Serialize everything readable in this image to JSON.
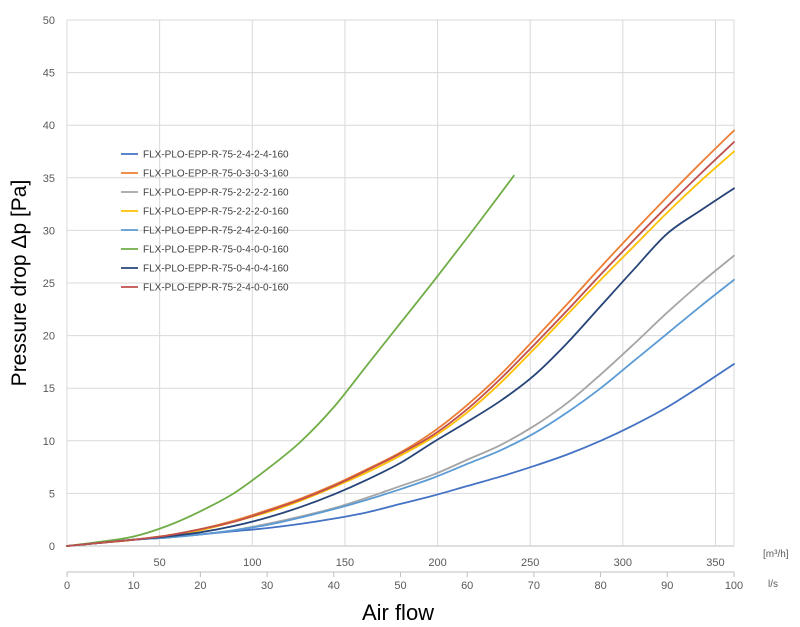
{
  "chart_data": {
    "type": "line",
    "title": "",
    "xlabel": "Air flow",
    "ylabel": "Pressure drop Δp [Pa]",
    "x_unit": "l/s",
    "x2_unit": "[m³/h]",
    "xlim": [
      0,
      100
    ],
    "ylim": [
      0,
      50
    ],
    "y_ticks": [
      "0",
      "5",
      "10",
      "15",
      "20",
      "25",
      "30",
      "35",
      "40",
      "45",
      "50"
    ],
    "x_ticks": [
      "0",
      "10",
      "20",
      "30",
      "40",
      "50",
      "60",
      "70",
      "80",
      "90",
      "100"
    ],
    "x2_ticks": [
      "50",
      "100",
      "150",
      "200",
      "250",
      "300",
      "350"
    ],
    "x2_tick_values_ls": [
      13.89,
      27.78,
      41.67,
      55.56,
      69.44,
      83.33,
      97.22
    ],
    "grid": true,
    "legend_position": "upper-left",
    "series": [
      {
        "name": "FLX-PLO-EPP-R-75-2-4-2-4-160",
        "color": "#4472C4",
        "x": [
          0,
          5,
          10,
          15,
          20,
          25,
          30,
          35,
          40,
          45,
          50,
          55,
          60,
          65,
          70,
          75,
          80,
          85,
          90,
          95,
          100
        ],
        "y": [
          0,
          0.3,
          0.6,
          0.8,
          1.1,
          1.4,
          1.7,
          2.1,
          2.6,
          3.2,
          4.0,
          4.8,
          5.7,
          6.6,
          7.6,
          8.7,
          10.0,
          11.5,
          13.2,
          15.2,
          17.3
        ]
      },
      {
        "name": "FLX-PLO-EPP-R-75-0-3-0-3-160",
        "color": "#ED7D31",
        "x": [
          0,
          5,
          10,
          15,
          20,
          25,
          30,
          35,
          40,
          45,
          50,
          55,
          60,
          65,
          70,
          75,
          80,
          85,
          90,
          95,
          100
        ],
        "y": [
          0,
          0.3,
          0.6,
          1.0,
          1.6,
          2.4,
          3.4,
          4.5,
          5.8,
          7.3,
          8.9,
          10.9,
          13.4,
          16.3,
          19.6,
          23.0,
          26.5,
          29.9,
          33.2,
          36.4,
          39.5
        ]
      },
      {
        "name": "FLX-PLO-EPP-R-75-2-2-2-2-160",
        "color": "#A5A5A5",
        "x": [
          0,
          5,
          10,
          15,
          20,
          25,
          30,
          35,
          40,
          45,
          50,
          55,
          60,
          65,
          70,
          75,
          80,
          85,
          90,
          95,
          100
        ],
        "y": [
          0,
          0.3,
          0.6,
          0.8,
          1.1,
          1.5,
          2.1,
          2.8,
          3.6,
          4.6,
          5.7,
          6.8,
          8.2,
          9.6,
          11.4,
          13.6,
          16.3,
          19.2,
          22.2,
          25.0,
          27.6
        ]
      },
      {
        "name": "FLX-PLO-EPP-R-75-2-2-2-0-160",
        "color": "#FFC000",
        "x": [
          0,
          5,
          10,
          15,
          20,
          25,
          30,
          35,
          40,
          45,
          50,
          55,
          60,
          65,
          70,
          75,
          80,
          85,
          90,
          95,
          100
        ],
        "y": [
          0,
          0.3,
          0.6,
          1.0,
          1.5,
          2.3,
          3.2,
          4.3,
          5.6,
          7.0,
          8.6,
          10.4,
          12.7,
          15.5,
          18.7,
          22.0,
          25.3,
          28.5,
          31.7,
          34.7,
          37.5
        ]
      },
      {
        "name": "FLX-PLO-EPP-R-75-2-4-2-0-160",
        "color": "#5B9BD5",
        "x": [
          0,
          5,
          10,
          15,
          20,
          25,
          30,
          35,
          40,
          45,
          50,
          55,
          60,
          65,
          70,
          75,
          80,
          85,
          90,
          95,
          100
        ],
        "y": [
          0,
          0.3,
          0.6,
          0.8,
          1.1,
          1.5,
          2.0,
          2.7,
          3.5,
          4.4,
          5.4,
          6.5,
          7.8,
          9.1,
          10.7,
          12.7,
          15.0,
          17.6,
          20.2,
          22.8,
          25.3
        ]
      },
      {
        "name": "FLX-PLO-EPP-R-75-0-4-0-0-160",
        "color": "#70AD47",
        "x": [
          0,
          5,
          10,
          15,
          20,
          25,
          30,
          35,
          40,
          45,
          50,
          55,
          60,
          65,
          67
        ],
        "y": [
          0,
          0.4,
          0.9,
          1.9,
          3.3,
          5.0,
          7.3,
          9.9,
          13.2,
          17.2,
          21.2,
          25.2,
          29.3,
          33.5,
          35.2
        ]
      },
      {
        "name": "FLX-PLO-EPP-R-75-0-4-0-4-160",
        "color": "#264478",
        "x": [
          0,
          5,
          10,
          15,
          20,
          25,
          30,
          35,
          40,
          45,
          50,
          55,
          60,
          65,
          70,
          75,
          80,
          85,
          90,
          95,
          100
        ],
        "y": [
          0,
          0.3,
          0.6,
          0.9,
          1.3,
          1.9,
          2.7,
          3.7,
          4.9,
          6.3,
          7.9,
          9.9,
          11.8,
          13.8,
          16.2,
          19.3,
          22.8,
          26.3,
          29.7,
          31.9,
          34.0
        ]
      },
      {
        "name": "FLX-PLO-EPP-R-75-2-4-0-0-160",
        "color": "#C0504D",
        "x": [
          0,
          5,
          10,
          15,
          20,
          25,
          30,
          35,
          40,
          45,
          50,
          55,
          60,
          65,
          70,
          75,
          80,
          85,
          90,
          95,
          100
        ],
        "y": [
          0,
          0.3,
          0.6,
          1.0,
          1.6,
          2.3,
          3.3,
          4.4,
          5.7,
          7.2,
          8.8,
          10.6,
          13.0,
          15.9,
          19.1,
          22.4,
          25.8,
          29.1,
          32.3,
          35.4,
          38.4
        ]
      }
    ]
  }
}
